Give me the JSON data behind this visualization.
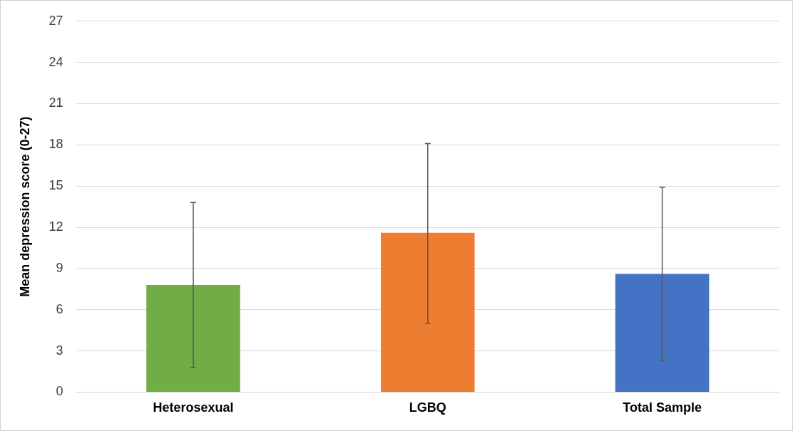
{
  "chart_data": {
    "type": "bar",
    "ylabel": "Mean depression score (0-27)",
    "categories": [
      "Heterosexual",
      "LGBQ",
      "Total Sample"
    ],
    "values": [
      7.8,
      11.6,
      8.6
    ],
    "colors": [
      "#70ad47",
      "#ed7d31",
      "#4472c4"
    ],
    "errors": [
      [
        1.8,
        13.8
      ],
      [
        5.0,
        18.1
      ],
      [
        2.3,
        14.9
      ]
    ],
    "ylim": [
      0,
      27
    ],
    "yticks": [
      0,
      3,
      6,
      9,
      12,
      15,
      18,
      21,
      24,
      27
    ],
    "grid": "y",
    "legend": false
  }
}
